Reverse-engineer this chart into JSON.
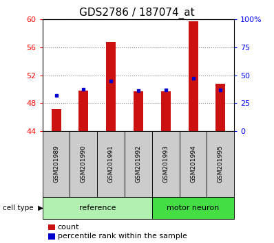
{
  "title": "GDS2786 / 187074_at",
  "samples": [
    "GSM201989",
    "GSM201990",
    "GSM201991",
    "GSM201992",
    "GSM201993",
    "GSM201994",
    "GSM201995"
  ],
  "count_values": [
    47.2,
    49.8,
    56.8,
    49.7,
    49.7,
    59.7,
    50.8
  ],
  "percentile_values": [
    32.0,
    37.5,
    45.0,
    36.5,
    37.0,
    47.5,
    37.0
  ],
  "ymin": 44,
  "ymax": 60,
  "yticks_left": [
    44,
    48,
    52,
    56,
    60
  ],
  "yticks_right": [
    0,
    25,
    50,
    75,
    100
  ],
  "groups": [
    {
      "label": "reference",
      "indices": [
        0,
        1,
        2,
        3
      ],
      "color": "#b2f0b2"
    },
    {
      "label": "motor neuron",
      "indices": [
        4,
        5,
        6
      ],
      "color": "#44dd44"
    }
  ],
  "bar_color": "#cc1111",
  "percentile_color": "#0000cc",
  "bar_width": 0.35,
  "grid_color": "#888888",
  "sample_bg_color": "#cccccc",
  "plot_bg": "#ffffff",
  "legend_items": [
    {
      "label": "count",
      "color": "#cc1111"
    },
    {
      "label": "percentile rank within the sample",
      "color": "#0000cc"
    }
  ],
  "cell_type_label": "cell type",
  "title_fontsize": 11,
  "tick_fontsize": 8,
  "legend_fontsize": 8
}
